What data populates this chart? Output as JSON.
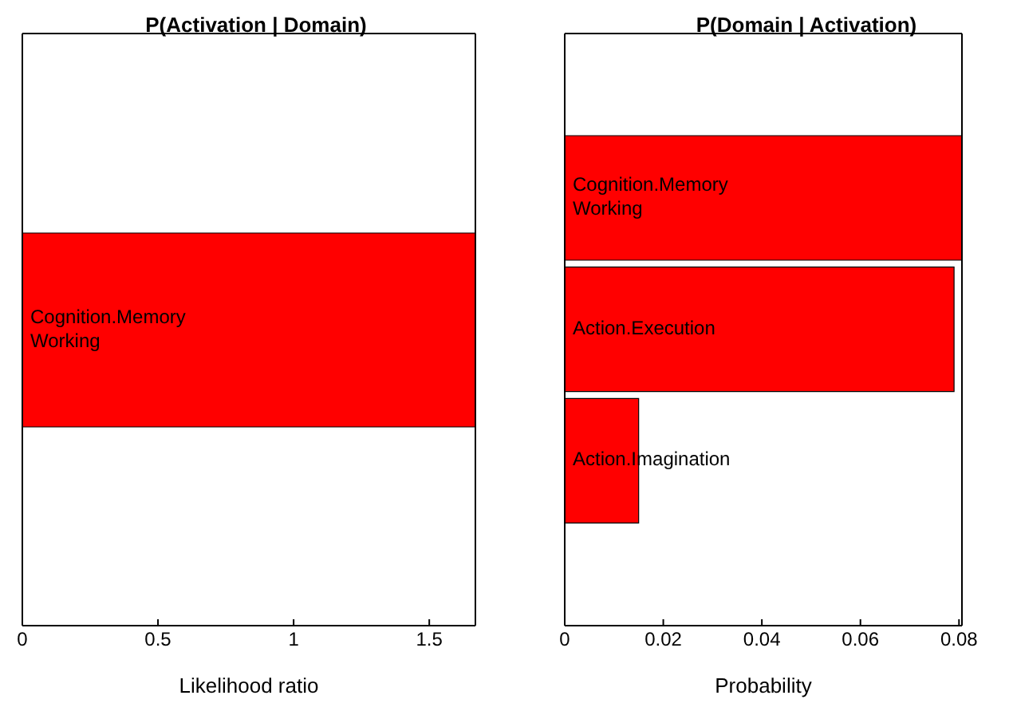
{
  "chart_data": [
    {
      "type": "bar",
      "orientation": "horizontal",
      "title": "P(Activation | Domain)",
      "xlabel": "Likelihood ratio",
      "categories": [
        "Cognition.Memory Working"
      ],
      "values": [
        1.67
      ],
      "color": "#ff0000",
      "xlim": [
        0,
        1.67
      ],
      "xticks": [
        0,
        0.5,
        1,
        1.5
      ],
      "tick_labels": "x",
      "grid": false,
      "legend": false
    },
    {
      "type": "bar",
      "orientation": "horizontal",
      "title": "P(Domain | Activation)",
      "xlabel": "Probability",
      "categories": [
        "Cognition.Memory Working",
        "Action.Execution",
        "Action.Imagination"
      ],
      "values": [
        0.0806,
        0.079,
        0.015
      ],
      "color": "#ff0000",
      "xlim": [
        0,
        0.0806
      ],
      "xticks": [
        0,
        0.02,
        0.04,
        0.06,
        0.08
      ],
      "tick_labels": "x",
      "grid": false,
      "legend": false
    }
  ]
}
